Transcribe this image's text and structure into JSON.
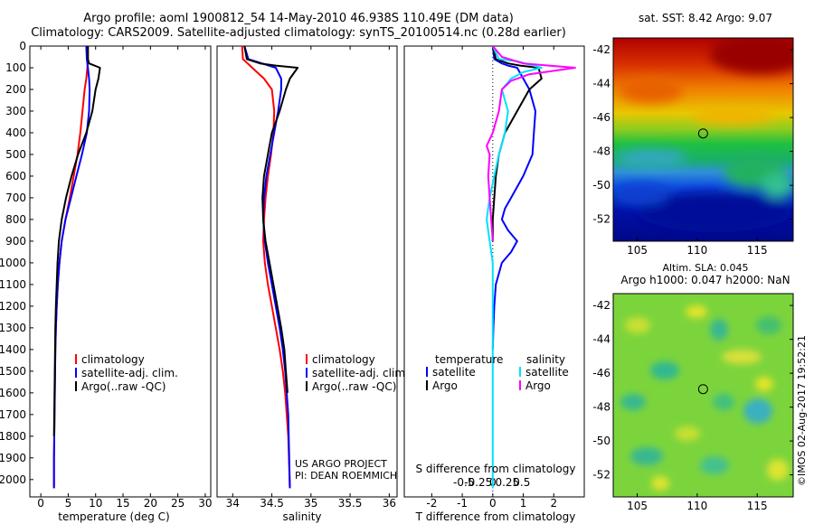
{
  "header": {
    "title_line1": "Argo profile: aoml 1900812_54 14-May-2010 46.938S 110.49E (DM data)",
    "title_line2": "Climatology: CARS2009. Satellite-adjusted climatology: synTS_20100514.nc (0.28d earlier)"
  },
  "colors": {
    "climatology": "#ff0000",
    "satellite": "#0000ff",
    "argo": "#000000",
    "salinity_satellite": "#00e0ff",
    "salinity_argo": "#ff00ff"
  },
  "chart_data": [
    {
      "type": "line",
      "panel": "temperature",
      "xlabel": "temperature (deg C)",
      "ylabel": "",
      "xlim": [
        -2,
        31
      ],
      "ylim": [
        2080,
        0
      ],
      "xticks": [
        0,
        5,
        10,
        15,
        20,
        25,
        30
      ],
      "yticks": [
        0,
        100,
        200,
        300,
        400,
        500,
        600,
        700,
        800,
        900,
        1000,
        1100,
        1200,
        1300,
        1400,
        1500,
        1600,
        1700,
        1800,
        1900,
        2000
      ],
      "legend": {
        "placement": "lower-center",
        "entries": [
          "climatology",
          "satellite-adj. clim.",
          "Argo(..raw -QC)"
        ]
      },
      "series": [
        {
          "name": "climatology",
          "color": "#ff0000",
          "x": [
            8.6,
            8.6,
            8.5,
            8.3,
            8.0,
            7.6,
            7.2,
            6.7,
            6.0,
            5.3,
            4.5,
            3.8,
            3.4,
            3.1,
            2.9,
            2.75,
            2.65,
            2.6,
            2.55,
            2.5,
            2.45,
            2.4,
            2.4
          ],
          "y": [
            0,
            60,
            100,
            150,
            200,
            300,
            400,
            500,
            600,
            700,
            800,
            900,
            1000,
            1100,
            1200,
            1300,
            1400,
            1500,
            1600,
            1700,
            1800,
            1900,
            2040
          ]
        },
        {
          "name": "satellite-adj. clim.",
          "color": "#0000ff",
          "x": [
            8.3,
            8.4,
            8.6,
            8.8,
            8.9,
            8.8,
            8.4,
            7.5,
            6.5,
            5.5,
            4.5,
            3.8,
            3.4,
            3.1,
            2.9,
            2.75,
            2.65,
            2.6,
            2.55,
            2.5,
            2.45,
            2.4,
            2.4
          ],
          "y": [
            0,
            60,
            100,
            150,
            200,
            300,
            400,
            500,
            600,
            700,
            800,
            900,
            1000,
            1100,
            1200,
            1300,
            1400,
            1500,
            1600,
            1700,
            1800,
            1900,
            2040
          ]
        },
        {
          "name": "Argo(..raw -QC)",
          "color": "#000000",
          "x": [
            8.6,
            8.6,
            8.8,
            10.8,
            10.5,
            10.0,
            9.4,
            8.3,
            6.8,
            5.6,
            4.6,
            3.8,
            3.3,
            3.05,
            2.9,
            2.75,
            2.65,
            2.6,
            2.55,
            2.5,
            2.45,
            2.4
          ],
          "y": [
            0,
            60,
            80,
            100,
            150,
            200,
            300,
            400,
            500,
            600,
            700,
            800,
            900,
            1000,
            1100,
            1200,
            1300,
            1400,
            1500,
            1600,
            1700,
            1800
          ]
        }
      ]
    },
    {
      "type": "line",
      "panel": "salinity",
      "xlabel": "salinity",
      "ylabel": "",
      "xlim": [
        33.8,
        36.1
      ],
      "ylim": [
        2080,
        0
      ],
      "xticks": [
        34,
        34.5,
        35,
        35.5,
        36
      ],
      "legend": {
        "placement": "lower-center",
        "entries": [
          "climatology",
          "satellite-adj. clim.",
          "Argo(..raw -QC)"
        ]
      },
      "annotation": [
        "US ARGO PROJECT",
        "PI: DEAN ROEMMICH"
      ],
      "series": [
        {
          "name": "climatology",
          "color": "#ff0000",
          "x": [
            34.12,
            34.13,
            34.25,
            34.4,
            34.5,
            34.53,
            34.52,
            34.49,
            34.45,
            34.42,
            34.4,
            34.39,
            34.41,
            34.45,
            34.5,
            34.55,
            34.6,
            34.64,
            34.67,
            34.69,
            34.71,
            34.73
          ],
          "y": [
            0,
            60,
            100,
            150,
            200,
            300,
            400,
            500,
            600,
            700,
            800,
            900,
            1000,
            1100,
            1200,
            1300,
            1400,
            1500,
            1600,
            1700,
            1800,
            2040
          ]
        },
        {
          "name": "satellite-adj. clim.",
          "color": "#0000ff",
          "x": [
            34.15,
            34.2,
            34.55,
            34.62,
            34.62,
            34.58,
            34.53,
            34.48,
            34.43,
            34.4,
            34.39,
            34.41,
            34.45,
            34.5,
            34.55,
            34.6,
            34.64,
            34.67,
            34.69,
            34.71,
            34.73
          ],
          "y": [
            0,
            60,
            100,
            150,
            200,
            300,
            400,
            500,
            600,
            700,
            800,
            900,
            1000,
            1100,
            1200,
            1300,
            1400,
            1500,
            1600,
            1700,
            2040
          ]
        },
        {
          "name": "Argo(..raw -QC)",
          "color": "#000000",
          "x": [
            34.15,
            34.18,
            34.35,
            34.55,
            34.83,
            34.73,
            34.68,
            34.6,
            34.5,
            34.45,
            34.4,
            34.38,
            34.39,
            34.42,
            34.47,
            34.52,
            34.57,
            34.62,
            34.66,
            34.68,
            34.7
          ],
          "y": [
            0,
            60,
            80,
            90,
            100,
            150,
            200,
            300,
            400,
            500,
            600,
            700,
            800,
            900,
            1000,
            1100,
            1200,
            1300,
            1400,
            1500,
            1600
          ]
        }
      ]
    },
    {
      "type": "line",
      "panel": "difference",
      "xlabel": "T difference from climatology",
      "xlabel2": "S difference from climatology",
      "xlim": [
        -2.9,
        3.0
      ],
      "ylim": [
        2080,
        0
      ],
      "xticks_T": [
        -2,
        -1,
        0,
        1,
        2
      ],
      "xticks_S": [
        "-0.5",
        "-0.25",
        "0",
        "0.25",
        "0.5"
      ],
      "xticks_S_values": [
        -0.5,
        -0.25,
        0,
        0.25,
        0.5
      ],
      "legend": {
        "placement": "lower-center",
        "temperature_header": "temperature",
        "salinity_header": "salinity",
        "temperature_entries": [
          "satellite",
          "Argo"
        ],
        "salinity_entries": [
          "satellite",
          "Argo"
        ]
      },
      "series": [
        {
          "name": "satellite",
          "group": "temperature",
          "color": "#0000ff",
          "x": [
            0,
            0.05,
            0.3,
            0.5,
            0.8,
            1.2,
            1.4,
            1.35,
            1.3,
            1.0,
            0.6,
            0.4,
            0.3,
            0.5,
            0.8,
            0.6,
            0.3,
            0.1,
            0.05,
            0.02,
            0
          ],
          "y": [
            0,
            60,
            80,
            90,
            100,
            200,
            300,
            400,
            500,
            600,
            700,
            750,
            800,
            850,
            900,
            950,
            1000,
            1100,
            1200,
            1300,
            1400
          ]
        },
        {
          "name": "Argo",
          "group": "temperature",
          "color": "#000000",
          "x": [
            0,
            0.1,
            0.5,
            0.9,
            1.5,
            1.6,
            1.2,
            0.8,
            0.4,
            0.2,
            0.1,
            0.05,
            0,
            0
          ],
          "y": [
            0,
            60,
            80,
            90,
            100,
            150,
            200,
            300,
            400,
            500,
            600,
            700,
            800,
            900
          ]
        },
        {
          "name": "satellite",
          "group": "salinity",
          "color": "#00e0ff",
          "x": [
            0,
            0.2,
            0.8,
            1.6,
            1.0,
            0.6,
            0.3,
            0.5,
            0.4,
            0.2,
            0.05,
            -0.1,
            -0.2,
            -0.1,
            0,
            0
          ],
          "y": [
            0,
            60,
            70,
            100,
            120,
            150,
            200,
            300,
            400,
            500,
            600,
            700,
            800,
            900,
            1000,
            2040
          ]
        },
        {
          "name": "Argo",
          "group": "salinity",
          "color": "#ff00ff",
          "x": [
            0,
            0.3,
            1.0,
            2.7,
            1.2,
            0.6,
            0.3,
            0.2,
            0,
            -0.2,
            -0.1,
            -0.15,
            -0.1,
            -0.05,
            0
          ],
          "y": [
            0,
            50,
            80,
            100,
            130,
            160,
            200,
            300,
            400,
            460,
            500,
            600,
            700,
            800,
            900
          ]
        }
      ]
    },
    {
      "type": "heatmap",
      "panel": "sst_map",
      "title": "sat. SST: 8.42  Argo: 9.07",
      "xlim": [
        103,
        118
      ],
      "ylim": [
        -53.3,
        -41.3
      ],
      "xticks": [
        105,
        110,
        115
      ],
      "yticks": [
        -42,
        -44,
        -46,
        -48,
        -50,
        -52
      ],
      "marker": {
        "lon": 110.49,
        "lat": -46.938
      }
    },
    {
      "type": "heatmap",
      "panel": "sla_map",
      "title": "Altim. SLA: 0.045",
      "subtitle": "Argo h1000: 0.047  h2000: NaN",
      "xlim": [
        103,
        118
      ],
      "ylim": [
        -53.3,
        -41.3
      ],
      "xticks": [
        105,
        110,
        115
      ],
      "yticks": [
        -42,
        -44,
        -46,
        -48,
        -50,
        -52
      ],
      "marker": {
        "lon": 110.49,
        "lat": -46.938
      }
    }
  ],
  "footer": {
    "stamp": "©IMOS 02-Aug-2017 19:52:21"
  }
}
